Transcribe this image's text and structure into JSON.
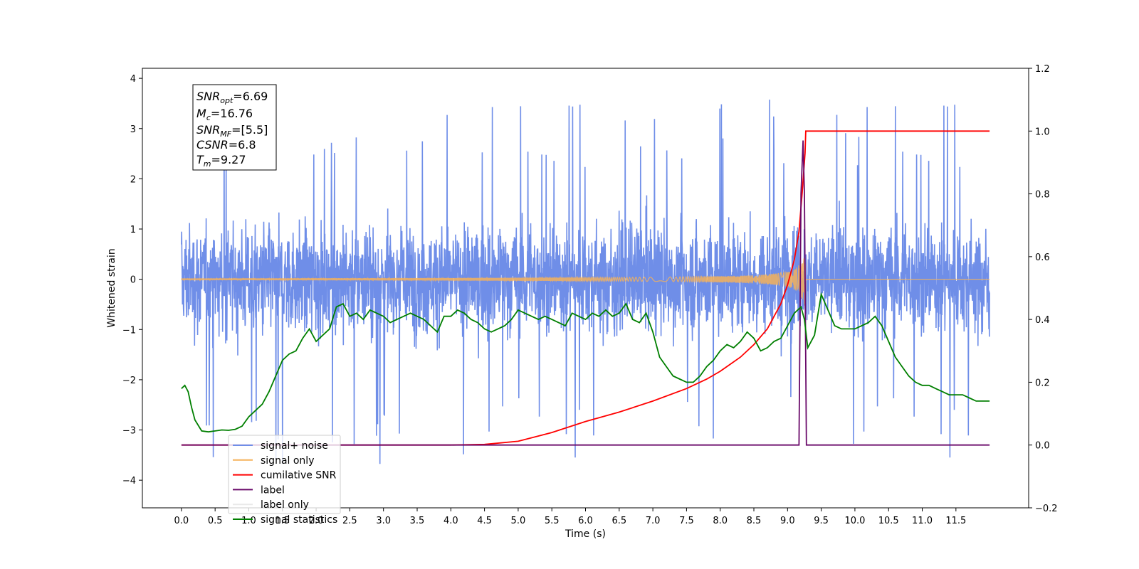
{
  "chart_data": {
    "type": "line",
    "title": "",
    "xlabel": "Time (s)",
    "ylabel": "Whitened strain",
    "ylabel_right": "",
    "xlim": [
      -0.58,
      12.58
    ],
    "ylim": [
      -4.55,
      4.2
    ],
    "ylim_right": [
      -0.2,
      1.2
    ],
    "x_ticks": [
      0.0,
      0.5,
      1.0,
      1.5,
      2.0,
      2.5,
      3.0,
      3.5,
      4.0,
      4.5,
      5.0,
      5.5,
      6.0,
      6.5,
      7.0,
      7.5,
      8.0,
      8.5,
      9.0,
      9.5,
      10.0,
      10.5,
      11.0,
      11.5
    ],
    "x_tick_labels": [
      "0.0",
      "0.5",
      "1.0",
      "1.5",
      "2.0",
      "2.5",
      "3.0",
      "3.5",
      "4.0",
      "4.5",
      "5.0",
      "5.5",
      "6.0",
      "6.5",
      "7.0",
      "7.5",
      "8.0",
      "8.5",
      "9.0",
      "9.5",
      "10.0",
      "10.5",
      "11.0",
      "11.5"
    ],
    "y_ticks": [
      4,
      3,
      2,
      1,
      0,
      -1,
      -2,
      -3,
      -4
    ],
    "y_tick_labels": [
      "4",
      "3",
      "2",
      "1",
      "0",
      "−1",
      "−2",
      "−3",
      "−4"
    ],
    "y_right_ticks": [
      1.2,
      1.0,
      0.8,
      0.6,
      0.4,
      0.2,
      0.0,
      -0.2
    ],
    "y_right_tick_labels": [
      "1.2",
      "1.0",
      "0.8",
      "0.6",
      "0.4",
      "0.2",
      "0.0",
      "−0.2"
    ],
    "grid": false,
    "legend_position": "bottom-left",
    "annotation": {
      "lines": [
        {
          "base": "SNR",
          "sub": "opt",
          "value": "=6.69"
        },
        {
          "base": "M",
          "sub": "c",
          "value": "=16.76"
        },
        {
          "base": "SNR",
          "sub": "MF",
          "value": "=[5.5]"
        },
        {
          "base": "CSNR",
          "sub": "",
          "value": "=6.8"
        },
        {
          "base": "T",
          "sub": "m",
          "value": "=9.27"
        }
      ]
    },
    "series": [
      {
        "name": "signal+ noise",
        "axis": "left",
        "color": "#6f8ee8",
        "description_kind": "noise",
        "x_range": [
          0.0,
          12.0
        ],
        "envelope_typical": [
          -1.8,
          1.8
        ],
        "envelope_extreme": [
          -4.1,
          3.8
        ]
      },
      {
        "name": "signal only",
        "axis": "left",
        "color": "#f5b25a",
        "description_kind": "chirp",
        "x_range": [
          0.0,
          12.0
        ],
        "merger_time": 9.27,
        "peak_amplitude": 0.75
      },
      {
        "name": "cumilative SNR",
        "axis": "right",
        "color": "#ff0000",
        "x": [
          0.0,
          4.0,
          4.5,
          5.0,
          5.5,
          6.0,
          6.5,
          7.0,
          7.5,
          7.8,
          8.0,
          8.3,
          8.5,
          8.7,
          8.9,
          9.0,
          9.1,
          9.17,
          9.22,
          9.26,
          9.27,
          12.0
        ],
        "values": [
          0.0,
          0.0,
          0.002,
          0.012,
          0.04,
          0.075,
          0.105,
          0.14,
          0.18,
          0.21,
          0.235,
          0.28,
          0.32,
          0.37,
          0.45,
          0.51,
          0.59,
          0.68,
          0.81,
          0.93,
          1.0,
          1.0
        ]
      },
      {
        "name": "label",
        "axis": "right",
        "color": "#6a0a6a",
        "x": [
          0.0,
          9.17,
          9.2,
          9.23,
          9.25,
          9.28,
          12.0
        ],
        "values": [
          0.0,
          0.0,
          0.8,
          0.97,
          0.8,
          0.0,
          0.0
        ]
      },
      {
        "name": "label only",
        "axis": "right",
        "color": "#e9e9e9",
        "legend_only": true,
        "x": [],
        "values": []
      },
      {
        "name": "signal statistics",
        "axis": "right",
        "color": "#007f00",
        "x": [
          0.0,
          0.05,
          0.1,
          0.15,
          0.2,
          0.3,
          0.4,
          0.5,
          0.6,
          0.7,
          0.8,
          0.9,
          1.0,
          1.1,
          1.2,
          1.3,
          1.4,
          1.5,
          1.6,
          1.7,
          1.8,
          1.9,
          2.0,
          2.1,
          2.2,
          2.3,
          2.4,
          2.5,
          2.6,
          2.7,
          2.8,
          2.9,
          3.0,
          3.1,
          3.2,
          3.3,
          3.4,
          3.5,
          3.6,
          3.7,
          3.8,
          3.9,
          4.0,
          4.1,
          4.2,
          4.3,
          4.4,
          4.5,
          4.6,
          4.7,
          4.8,
          4.9,
          5.0,
          5.1,
          5.2,
          5.3,
          5.4,
          5.5,
          5.6,
          5.7,
          5.8,
          5.9,
          6.0,
          6.1,
          6.2,
          6.3,
          6.4,
          6.5,
          6.6,
          6.7,
          6.8,
          6.9,
          7.0,
          7.1,
          7.2,
          7.3,
          7.4,
          7.5,
          7.6,
          7.7,
          7.8,
          7.9,
          8.0,
          8.1,
          8.2,
          8.3,
          8.4,
          8.5,
          8.6,
          8.7,
          8.8,
          8.9,
          9.0,
          9.1,
          9.2,
          9.25,
          9.3,
          9.4,
          9.5,
          9.6,
          9.7,
          9.8,
          9.9,
          10.0,
          10.1,
          10.2,
          10.3,
          10.4,
          10.5,
          10.6,
          10.7,
          10.8,
          10.9,
          11.0,
          11.1,
          11.2,
          11.3,
          11.4,
          11.5,
          11.6,
          11.7,
          11.8,
          11.9,
          12.0
        ],
        "values": [
          0.18,
          0.19,
          0.17,
          0.12,
          0.08,
          0.045,
          0.042,
          0.045,
          0.048,
          0.047,
          0.05,
          0.06,
          0.09,
          0.11,
          0.13,
          0.17,
          0.22,
          0.27,
          0.29,
          0.3,
          0.34,
          0.37,
          0.33,
          0.35,
          0.37,
          0.44,
          0.45,
          0.41,
          0.42,
          0.4,
          0.43,
          0.42,
          0.41,
          0.39,
          0.4,
          0.41,
          0.42,
          0.41,
          0.4,
          0.38,
          0.36,
          0.41,
          0.41,
          0.43,
          0.42,
          0.4,
          0.39,
          0.37,
          0.36,
          0.37,
          0.38,
          0.4,
          0.43,
          0.42,
          0.41,
          0.4,
          0.41,
          0.4,
          0.39,
          0.38,
          0.42,
          0.41,
          0.4,
          0.42,
          0.41,
          0.43,
          0.41,
          0.42,
          0.45,
          0.4,
          0.39,
          0.42,
          0.36,
          0.28,
          0.25,
          0.22,
          0.21,
          0.2,
          0.2,
          0.22,
          0.25,
          0.27,
          0.3,
          0.32,
          0.31,
          0.33,
          0.36,
          0.34,
          0.3,
          0.31,
          0.33,
          0.34,
          0.38,
          0.42,
          0.44,
          0.4,
          0.31,
          0.35,
          0.48,
          0.43,
          0.38,
          0.37,
          0.37,
          0.37,
          0.38,
          0.39,
          0.41,
          0.38,
          0.33,
          0.28,
          0.25,
          0.22,
          0.2,
          0.19,
          0.19,
          0.18,
          0.17,
          0.16,
          0.16,
          0.16,
          0.15,
          0.14,
          0.14,
          0.14
        ]
      }
    ]
  }
}
